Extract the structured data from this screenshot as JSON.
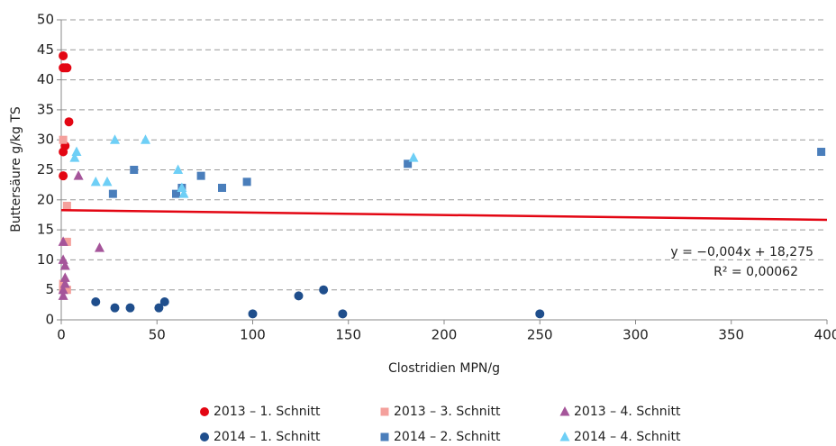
{
  "chart_data": {
    "type": "scatter",
    "y_label": "Buttersäure g/kg TS",
    "x_label": "Clostridien MPN/g",
    "xlim": [
      0,
      400
    ],
    "xticks": [
      0,
      50,
      100,
      150,
      200,
      250,
      300,
      350,
      400
    ],
    "ylim": [
      0,
      50
    ],
    "yticks": [
      0,
      5,
      10,
      15,
      20,
      25,
      30,
      35,
      40,
      45,
      50
    ],
    "grid": true,
    "series": [
      {
        "name": "2013 – 1. Schnitt",
        "color": "#e30613",
        "marker": "circle",
        "x": [
          1,
          1,
          2,
          3,
          4,
          2,
          1,
          1
        ],
        "values": [
          44,
          42,
          42,
          42,
          33,
          29,
          28,
          24
        ]
      },
      {
        "name": "2013 – 3. Schnitt",
        "color": "#f4a09c",
        "marker": "square",
        "x": [
          1,
          3,
          2,
          3,
          1,
          1,
          3
        ],
        "values": [
          30,
          19,
          13,
          13,
          6,
          5,
          5
        ]
      },
      {
        "name": "2013 – 4. Schnitt",
        "color": "#a5559a",
        "marker": "triangle",
        "x": [
          9,
          20,
          1,
          1,
          2,
          2,
          1,
          1,
          2
        ],
        "values": [
          24,
          12,
          13,
          10,
          9,
          7,
          5,
          4,
          6
        ]
      },
      {
        "name": "2014 – 1. Schnitt",
        "color": "#1f4e8c",
        "marker": "circle",
        "x": [
          18,
          28,
          36,
          51,
          54,
          100,
          124,
          137,
          147,
          250
        ],
        "values": [
          3,
          2,
          2,
          2,
          3,
          1,
          4,
          5,
          1,
          1
        ]
      },
      {
        "name": "2014 – 2. Schnitt",
        "color": "#4a7ebb",
        "marker": "square",
        "x": [
          38,
          27,
          60,
          63,
          73,
          84,
          97,
          181,
          397
        ],
        "values": [
          25,
          21,
          21,
          22,
          24,
          22,
          23,
          26,
          28
        ]
      },
      {
        "name": "2014 – 4. Schnitt",
        "color": "#6ecff6",
        "marker": "triangle",
        "x": [
          8,
          7,
          18,
          24,
          28,
          44,
          61,
          64,
          63,
          184
        ],
        "values": [
          28,
          27,
          23,
          23,
          30,
          30,
          25,
          21,
          22,
          27
        ]
      }
    ],
    "trendline": {
      "slope": -0.004,
      "intercept": 18.275,
      "color": "#e30613",
      "equation": "y = −0,004x + 18,275",
      "r_squared": "R² = 0,00062"
    }
  }
}
